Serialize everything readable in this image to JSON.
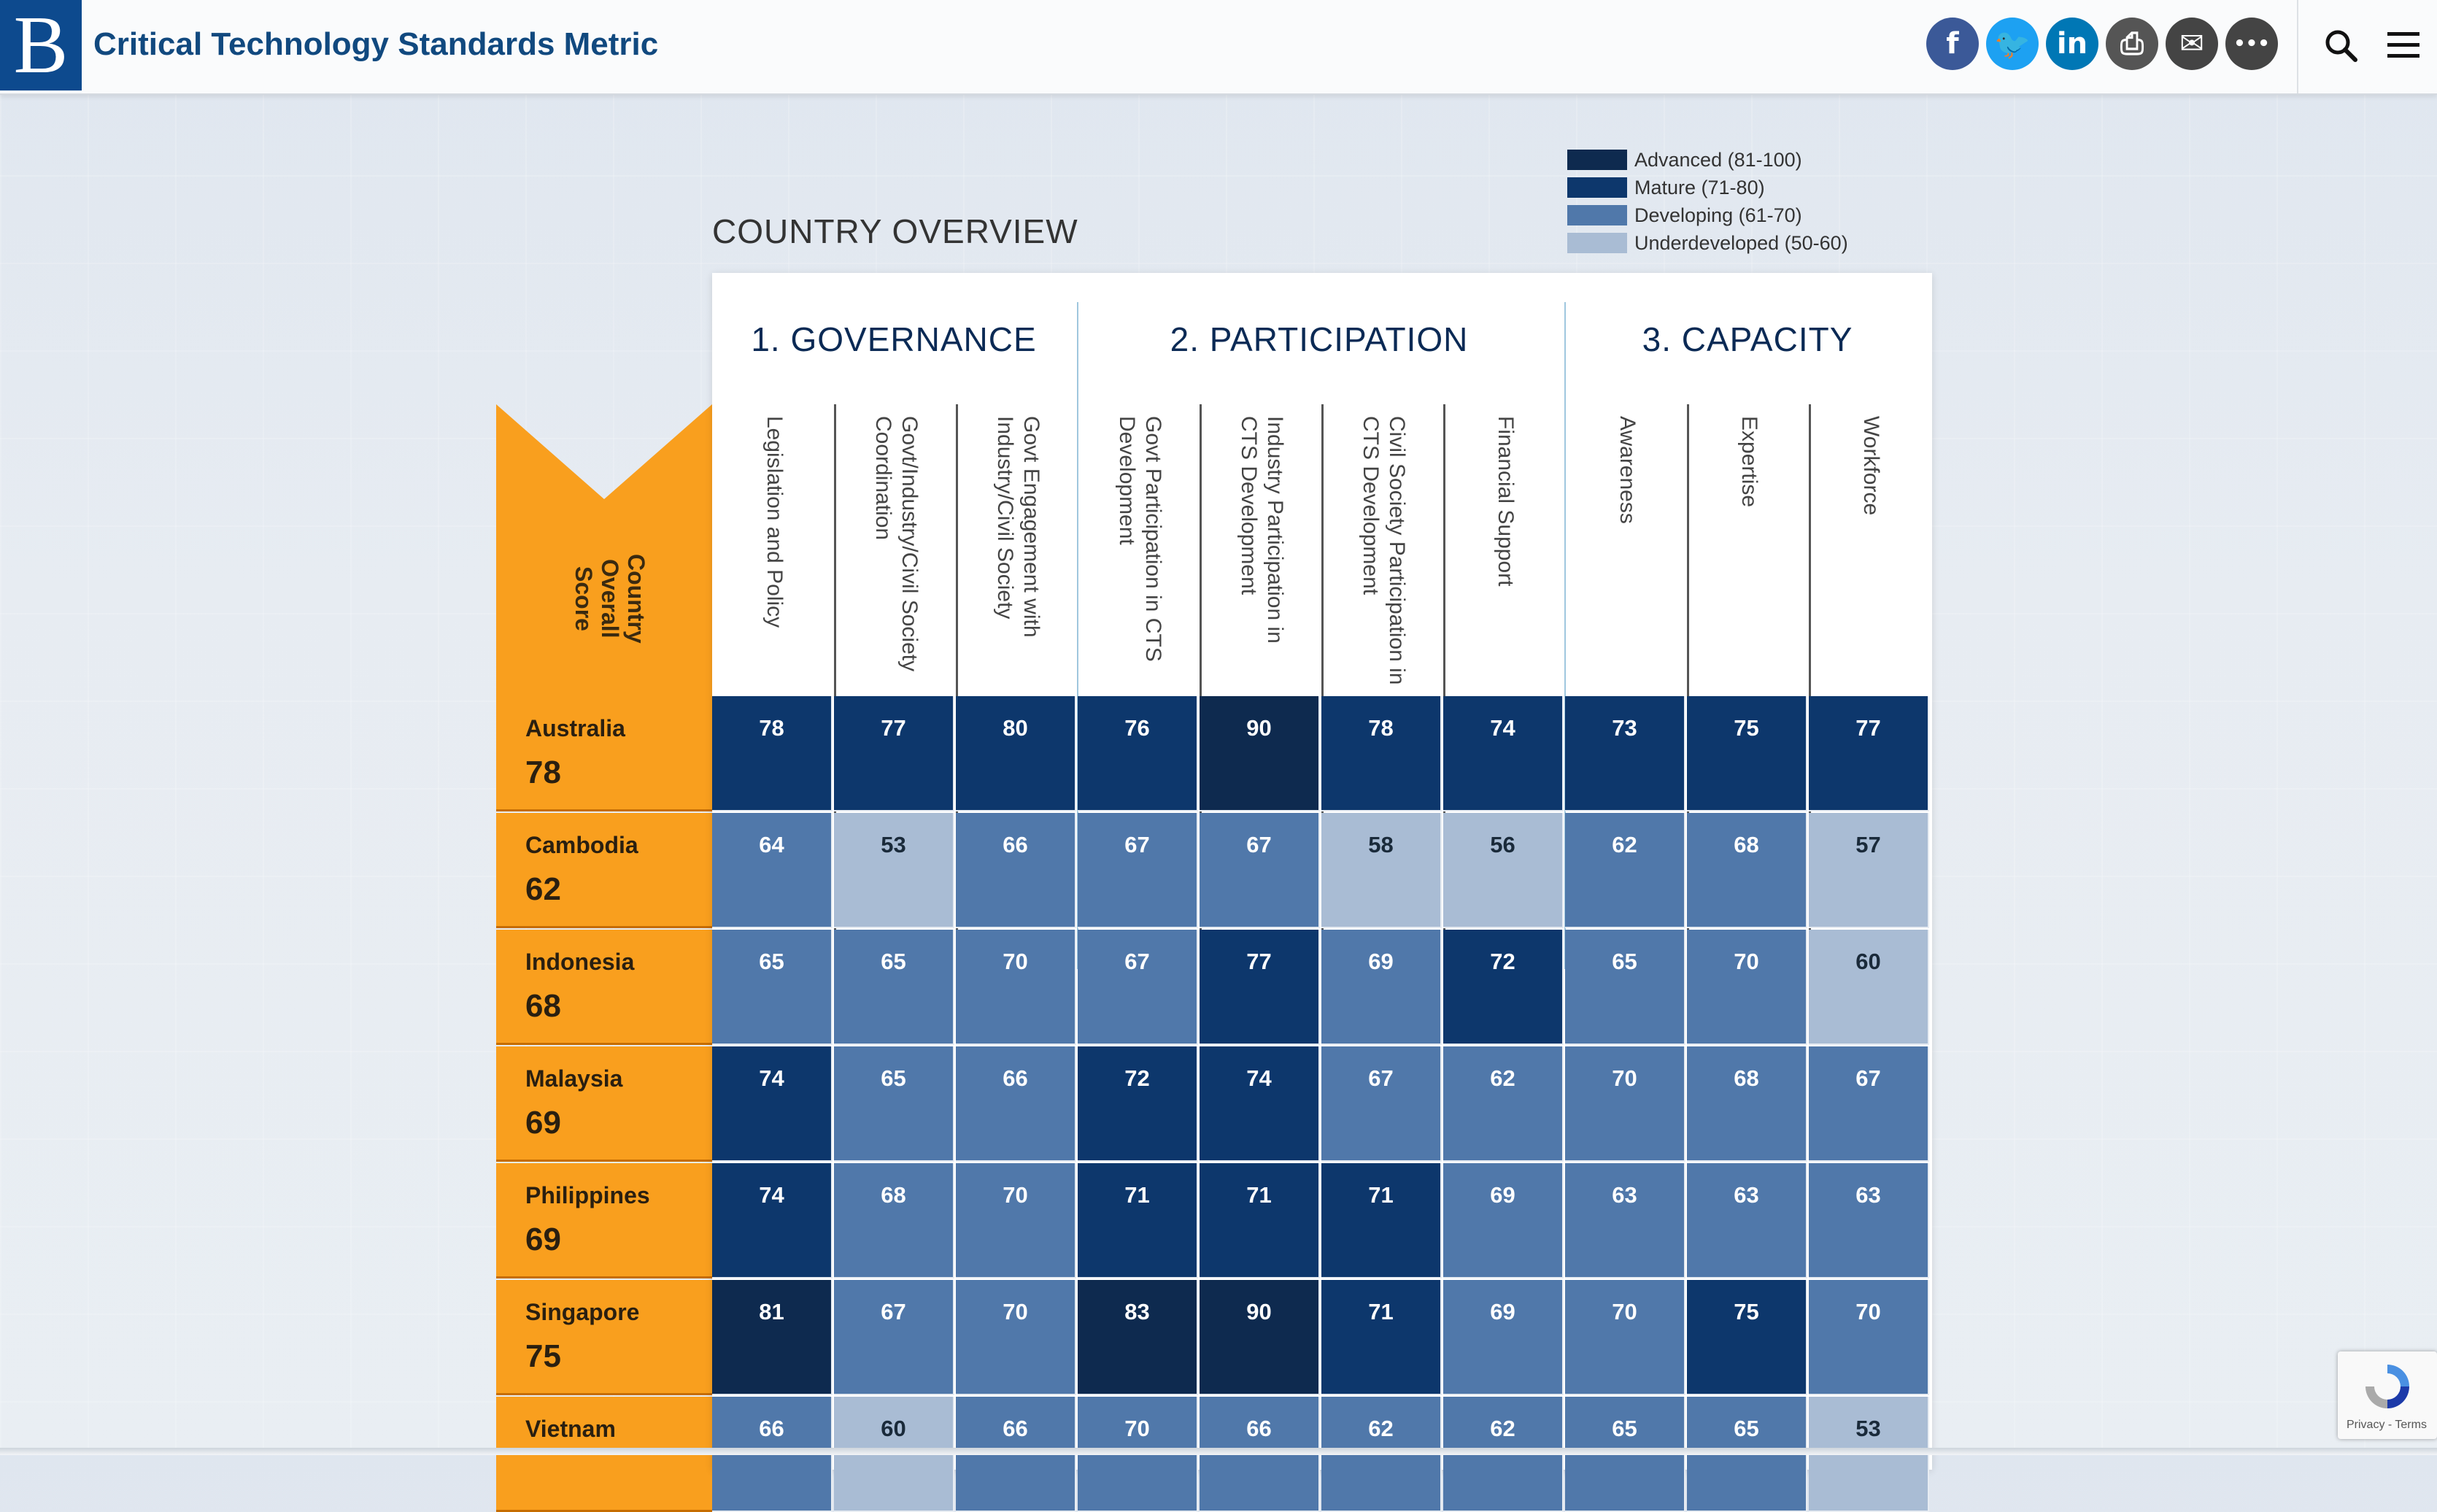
{
  "header": {
    "logo_letter": "B",
    "title": "Critical Technology Standards Metric",
    "share_buttons": [
      {
        "name": "facebook-icon",
        "glyph": "f",
        "color": "#3b5998"
      },
      {
        "name": "twitter-icon",
        "glyph": "🐦",
        "color": "#1da1f2"
      },
      {
        "name": "linkedin-icon",
        "glyph": "in",
        "color": "#0077b5"
      },
      {
        "name": "print-icon",
        "glyph": "⎙",
        "color": "#555555"
      },
      {
        "name": "email-icon",
        "glyph": "✉",
        "color": "#444444"
      },
      {
        "name": "more-icon",
        "glyph": "•••",
        "color": "#444444"
      }
    ]
  },
  "legend": [
    {
      "label": "Advanced (81-100)",
      "color": "#0e2a4f"
    },
    {
      "label": "Mature (71-80)",
      "color": "#0d376c"
    },
    {
      "label": "Developing (61-70)",
      "color": "#5078aa"
    },
    {
      "label": "Underdeveloped (50-60)",
      "color": "#a9bcd4"
    }
  ],
  "overview_title": "COUNTRY OVERVIEW",
  "categories": [
    "1. GOVERNANCE",
    "2. PARTICIPATION",
    "3. CAPACITY"
  ],
  "columns": [
    "Legislation and Policy",
    "Govt/Industry/Civil Society Coordination",
    "Govt Engagement with Industry/Civil Society",
    "Govt Participation in CTS Development",
    "Industry Participation in CTS Development",
    "Civil Society Participation in CTS Development",
    "Financial Support",
    "Awareness",
    "Expertise",
    "Workforce"
  ],
  "overall_label": "Country Overall Score",
  "rows": [
    {
      "country": "Australia",
      "overall": "78",
      "values": [
        78,
        77,
        80,
        76,
        90,
        78,
        74,
        73,
        75,
        77
      ]
    },
    {
      "country": "Cambodia",
      "overall": "62",
      "values": [
        64,
        53,
        66,
        67,
        67,
        58,
        56,
        62,
        68,
        57
      ]
    },
    {
      "country": "Indonesia",
      "overall": "68",
      "values": [
        65,
        65,
        70,
        67,
        77,
        69,
        72,
        65,
        70,
        60
      ]
    },
    {
      "country": "Malaysia",
      "overall": "69",
      "values": [
        74,
        65,
        66,
        72,
        74,
        67,
        62,
        70,
        68,
        67
      ]
    },
    {
      "country": "Philippines",
      "overall": "69",
      "values": [
        74,
        68,
        70,
        71,
        71,
        71,
        69,
        63,
        63,
        63
      ]
    },
    {
      "country": "Singapore",
      "overall": "75",
      "values": [
        81,
        67,
        70,
        83,
        90,
        71,
        69,
        70,
        75,
        70
      ]
    },
    {
      "country": "Vietnam",
      "overall": "",
      "values": [
        66,
        60,
        66,
        70,
        66,
        62,
        62,
        65,
        65,
        53
      ]
    }
  ],
  "recaptcha": {
    "text": "Privacy - Terms"
  }
}
